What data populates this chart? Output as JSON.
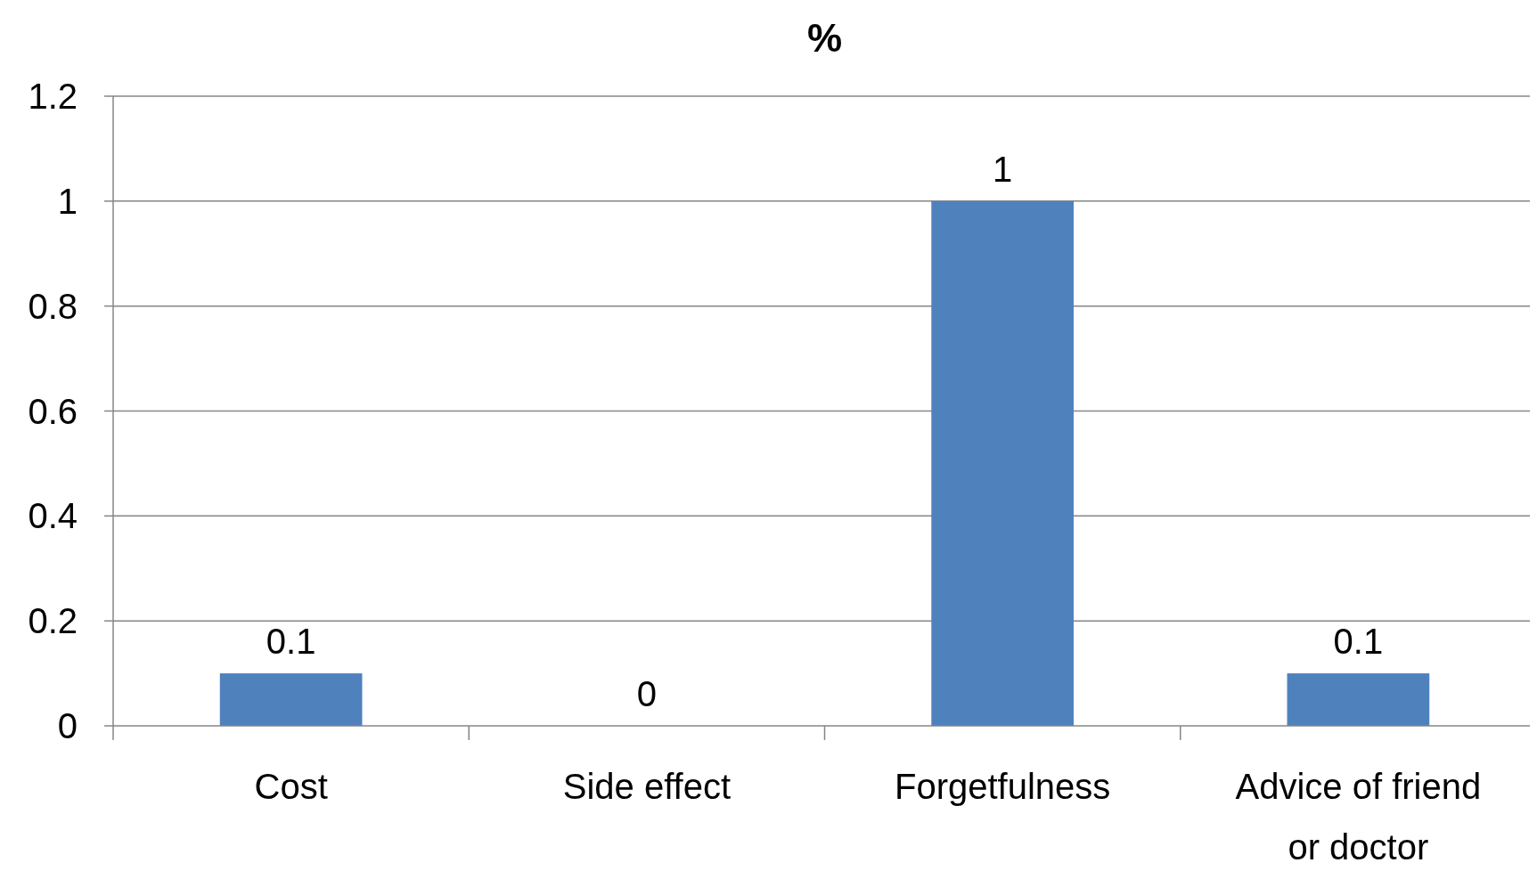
{
  "chart_data": {
    "type": "bar",
    "title": "%",
    "categories": [
      "Cost",
      "Side effect",
      "Forgetfulness",
      "Advice of friend or doctor"
    ],
    "values": [
      0.1,
      0,
      1,
      0.1
    ],
    "color": "#4f81bd",
    "ylim": [
      0,
      1.2
    ],
    "yticks": [
      0,
      0.2,
      0.4,
      0.6,
      0.8,
      1,
      1.2
    ],
    "grid": "y",
    "data_labels": true
  }
}
